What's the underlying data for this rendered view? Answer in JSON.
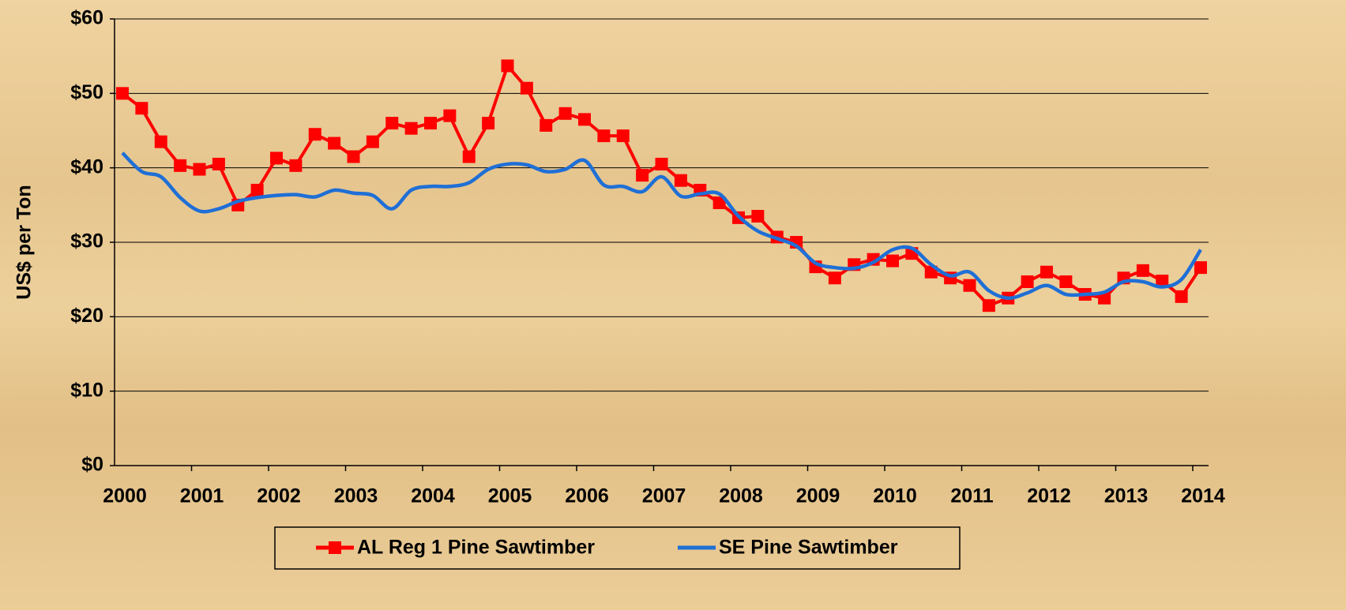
{
  "chart_data": {
    "type": "line",
    "y_label": "US$ per Ton",
    "categories": [
      "2000",
      null,
      null,
      null,
      "2001",
      null,
      null,
      null,
      "2002",
      null,
      null,
      null,
      "2003",
      null,
      null,
      null,
      "2004",
      null,
      null,
      null,
      "2005",
      null,
      null,
      null,
      "2006",
      null,
      null,
      null,
      "2007",
      null,
      null,
      null,
      "2008",
      null,
      null,
      null,
      "2009",
      null,
      null,
      null,
      "2010",
      null,
      null,
      null,
      "2011",
      null,
      null,
      null,
      "2012",
      null,
      null,
      null,
      "2013",
      null,
      null,
      null,
      "2014"
    ],
    "series": [
      {
        "name": "AL Reg 1 Pine Sawtimber",
        "color": "#ff0000",
        "marker": "square",
        "values": [
          50,
          48,
          43.5,
          40.3,
          39.8,
          40.5,
          35,
          37,
          41.3,
          40.3,
          44.5,
          43.3,
          41.5,
          43.5,
          46,
          45.3,
          46,
          47,
          41.5,
          46,
          53.7,
          50.7,
          45.7,
          47.3,
          46.5,
          44.3,
          44.3,
          39,
          40.5,
          38.3,
          37,
          35.3,
          33.3,
          33.5,
          30.7,
          30,
          26.7,
          25.2,
          27,
          27.7,
          27.5,
          28.5,
          26,
          25.2,
          24.2,
          21.5,
          22.5,
          24.7,
          26,
          24.7,
          23,
          22.5,
          25.2,
          26.2,
          24.8,
          22.7,
          26.6
        ]
      },
      {
        "name": "SE Pine Sawtimber",
        "color": "#1f6fd6",
        "smooth": true,
        "values": [
          42,
          39.5,
          38.8,
          36,
          34.2,
          34.5,
          35.5,
          36,
          36.3,
          36.4,
          36.1,
          37,
          36.6,
          36.3,
          34.5,
          37,
          37.5,
          37.5,
          38,
          39.8,
          40.5,
          40.4,
          39.5,
          39.8,
          41,
          37.7,
          37.5,
          36.8,
          38.8,
          36.2,
          36.5,
          36.5,
          33.5,
          31.5,
          30.5,
          29.5,
          27.2,
          26.6,
          26.5,
          27.3,
          29,
          29.2,
          27,
          25.5,
          26,
          23.5,
          22.5,
          23.2,
          24.2,
          23,
          23,
          23.3,
          24.7,
          24.7,
          24,
          25,
          29
        ]
      }
    ],
    "ylim": [
      0,
      60
    ],
    "yticks": [
      {
        "value": 0,
        "label": "$0"
      },
      {
        "value": 10,
        "label": "$10"
      },
      {
        "value": 20,
        "label": "$20"
      },
      {
        "value": 30,
        "label": "$30"
      },
      {
        "value": 40,
        "label": "$40"
      },
      {
        "value": 50,
        "label": "$50"
      },
      {
        "value": 60,
        "label": "$60"
      }
    ],
    "grid": true,
    "legend": "bottom"
  }
}
